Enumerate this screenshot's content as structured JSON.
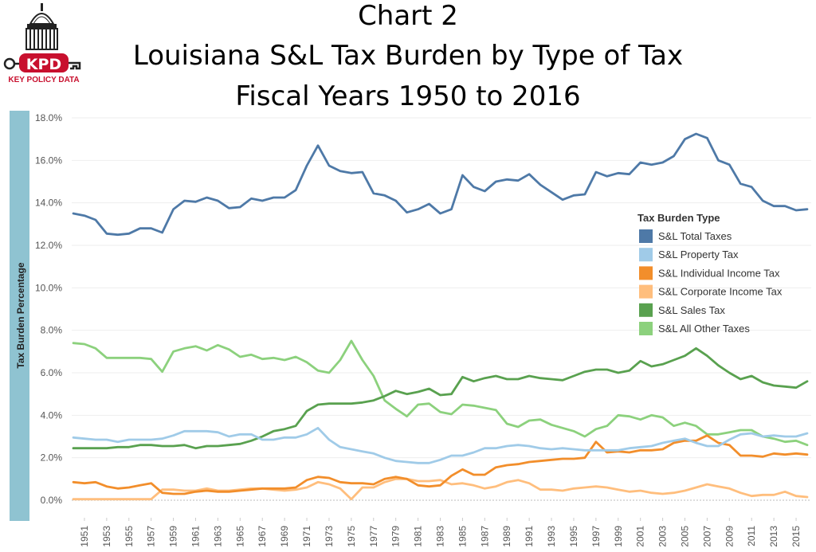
{
  "title": {
    "line1": "Chart 2",
    "line2": "Louisiana S&L Tax Burden by Type of Tax",
    "line3": "Fiscal Years 1950 to 2016"
  },
  "logo": {
    "abbr": "KPD",
    "tagline": "KEY POLICY DATA"
  },
  "chart_data": {
    "type": "line",
    "title": "Louisiana S&L Tax Burden by Type of Tax, Fiscal Years 1950 to 2016",
    "xlabel": "",
    "ylabel": "Tax Burden Percentage",
    "ylim": [
      0,
      18
    ],
    "y_ticks": [
      "0.0%",
      "2.0%",
      "4.0%",
      "6.0%",
      "8.0%",
      "10.0%",
      "12.0%",
      "14.0%",
      "16.0%",
      "18.0%"
    ],
    "x_tick_labels": [
      "1951",
      "1953",
      "1955",
      "1957",
      "1959",
      "1961",
      "1963",
      "1965",
      "1967",
      "1969",
      "1971",
      "1973",
      "1975",
      "1977",
      "1979",
      "1981",
      "1983",
      "1985",
      "1987",
      "1989",
      "1991",
      "1993",
      "1995",
      "1997",
      "1999",
      "2001",
      "2003",
      "2005",
      "2007",
      "2009",
      "2011",
      "2013",
      "2015"
    ],
    "x": [
      1950,
      1951,
      1952,
      1953,
      1954,
      1955,
      1956,
      1957,
      1958,
      1959,
      1960,
      1961,
      1962,
      1963,
      1964,
      1965,
      1966,
      1967,
      1968,
      1969,
      1970,
      1971,
      1972,
      1973,
      1974,
      1975,
      1976,
      1977,
      1978,
      1979,
      1980,
      1981,
      1982,
      1983,
      1984,
      1985,
      1986,
      1987,
      1988,
      1989,
      1990,
      1991,
      1992,
      1993,
      1994,
      1995,
      1996,
      1997,
      1998,
      1999,
      2000,
      2001,
      2002,
      2003,
      2004,
      2005,
      2006,
      2007,
      2008,
      2009,
      2010,
      2011,
      2012,
      2013,
      2014,
      2015,
      2016
    ],
    "legend_title": "Tax Burden Type",
    "legend_position": "right",
    "series": [
      {
        "name": "S&L Total Taxes",
        "color": "#4e79a7",
        "values": [
          13.5,
          13.4,
          13.2,
          12.55,
          12.5,
          12.55,
          12.8,
          12.8,
          12.6,
          13.7,
          14.1,
          14.05,
          14.25,
          14.1,
          13.75,
          13.8,
          14.2,
          14.1,
          14.25,
          14.25,
          14.6,
          15.75,
          16.7,
          15.75,
          15.5,
          15.4,
          15.45,
          14.45,
          14.35,
          14.1,
          13.55,
          13.7,
          13.95,
          13.5,
          13.7,
          15.3,
          14.75,
          14.55,
          15.0,
          15.1,
          15.05,
          15.35,
          14.85,
          14.5,
          14.15,
          14.35,
          14.4,
          15.45,
          15.25,
          15.4,
          15.35,
          15.9,
          15.8,
          15.9,
          16.2,
          17.0,
          17.25,
          17.05,
          16.0,
          15.8,
          14.9,
          14.75,
          14.1,
          13.85,
          13.85,
          13.65,
          13.7
        ]
      },
      {
        "name": "S&L Property Tax",
        "color": "#a0cbe8",
        "values": [
          2.95,
          2.9,
          2.85,
          2.85,
          2.75,
          2.85,
          2.85,
          2.85,
          2.9,
          3.05,
          3.25,
          3.25,
          3.25,
          3.2,
          3.0,
          3.1,
          3.1,
          2.85,
          2.85,
          2.95,
          2.95,
          3.1,
          3.4,
          2.85,
          2.5,
          2.4,
          2.3,
          2.2,
          2.0,
          1.85,
          1.8,
          1.75,
          1.75,
          1.9,
          2.1,
          2.1,
          2.25,
          2.45,
          2.45,
          2.55,
          2.6,
          2.55,
          2.45,
          2.4,
          2.45,
          2.4,
          2.35,
          2.35,
          2.35,
          2.35,
          2.45,
          2.5,
          2.55,
          2.7,
          2.8,
          2.9,
          2.7,
          2.55,
          2.55,
          2.85,
          3.1,
          3.15,
          3.0,
          3.05,
          3.0,
          3.0,
          3.15
        ]
      },
      {
        "name": "S&L Individual Income Tax",
        "color": "#f28e2b",
        "values": [
          0.85,
          0.8,
          0.85,
          0.65,
          0.55,
          0.6,
          0.7,
          0.8,
          0.35,
          0.3,
          0.3,
          0.4,
          0.45,
          0.4,
          0.4,
          0.45,
          0.5,
          0.55,
          0.55,
          0.55,
          0.6,
          0.95,
          1.1,
          1.05,
          0.85,
          0.8,
          0.8,
          0.75,
          1.0,
          1.1,
          1.0,
          0.7,
          0.65,
          0.7,
          1.15,
          1.45,
          1.2,
          1.2,
          1.55,
          1.65,
          1.7,
          1.8,
          1.85,
          1.9,
          1.95,
          1.95,
          2.0,
          2.75,
          2.25,
          2.3,
          2.25,
          2.35,
          2.35,
          2.4,
          2.7,
          2.8,
          2.8,
          3.05,
          2.7,
          2.6,
          2.1,
          2.1,
          2.05,
          2.2,
          2.15,
          2.2,
          2.15
        ]
      },
      {
        "name": "S&L Corporate Income Tax",
        "color": "#ffbe7d",
        "values": [
          0.05,
          0.05,
          0.05,
          0.05,
          0.05,
          0.05,
          0.05,
          0.05,
          0.5,
          0.5,
          0.45,
          0.45,
          0.55,
          0.45,
          0.45,
          0.5,
          0.55,
          0.55,
          0.5,
          0.45,
          0.5,
          0.6,
          0.85,
          0.75,
          0.55,
          0.05,
          0.6,
          0.6,
          0.85,
          1.0,
          1.0,
          0.9,
          0.9,
          0.95,
          0.75,
          0.8,
          0.7,
          0.55,
          0.65,
          0.85,
          0.95,
          0.8,
          0.5,
          0.5,
          0.45,
          0.55,
          0.6,
          0.65,
          0.6,
          0.5,
          0.4,
          0.45,
          0.35,
          0.3,
          0.35,
          0.45,
          0.6,
          0.75,
          0.65,
          0.55,
          0.35,
          0.2,
          0.25,
          0.25,
          0.4,
          0.2,
          0.15
        ]
      },
      {
        "name": "S&L Sales Tax",
        "color": "#59a14f",
        "values": [
          2.45,
          2.45,
          2.45,
          2.45,
          2.5,
          2.5,
          2.6,
          2.6,
          2.55,
          2.55,
          2.6,
          2.45,
          2.55,
          2.55,
          2.6,
          2.65,
          2.8,
          3.0,
          3.25,
          3.35,
          3.5,
          4.2,
          4.5,
          4.55,
          4.55,
          4.55,
          4.6,
          4.7,
          4.9,
          5.15,
          5.0,
          5.1,
          5.25,
          4.95,
          5.0,
          5.8,
          5.6,
          5.75,
          5.85,
          5.7,
          5.7,
          5.85,
          5.75,
          5.7,
          5.65,
          5.85,
          6.05,
          6.15,
          6.15,
          6.0,
          6.1,
          6.55,
          6.3,
          6.4,
          6.6,
          6.8,
          7.15,
          6.8,
          6.35,
          6.0,
          5.7,
          5.85,
          5.55,
          5.4,
          5.35,
          5.3,
          5.6
        ]
      },
      {
        "name": "S&L All Other Taxes",
        "color": "#8cd17d",
        "values": [
          7.4,
          7.35,
          7.15,
          6.7,
          6.7,
          6.7,
          6.7,
          6.65,
          6.05,
          7.0,
          7.15,
          7.25,
          7.05,
          7.3,
          7.1,
          6.75,
          6.85,
          6.65,
          6.7,
          6.6,
          6.75,
          6.5,
          6.1,
          6.0,
          6.6,
          7.5,
          6.6,
          5.85,
          4.7,
          4.3,
          3.95,
          4.5,
          4.55,
          4.15,
          4.05,
          4.5,
          4.45,
          4.35,
          4.25,
          3.6,
          3.45,
          3.75,
          3.8,
          3.55,
          3.4,
          3.25,
          3.0,
          3.35,
          3.5,
          4.0,
          3.95,
          3.8,
          4.0,
          3.9,
          3.5,
          3.65,
          3.5,
          3.1,
          3.1,
          3.2,
          3.3,
          3.3,
          3.0,
          2.9,
          2.75,
          2.8,
          2.6
        ]
      }
    ]
  }
}
